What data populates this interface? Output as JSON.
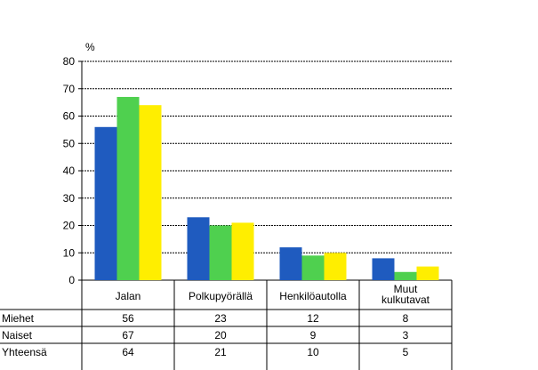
{
  "chart_data": {
    "type": "bar",
    "ylabel": "%",
    "ylim": [
      0,
      80
    ],
    "yticks": [
      0,
      10,
      20,
      30,
      40,
      50,
      60,
      70,
      80
    ],
    "grid": true,
    "categories": [
      "Jalan",
      "Polkupyörällä",
      "Henkilöautolla",
      "Muut kulkutavat"
    ],
    "category_lines": [
      [
        "Jalan"
      ],
      [
        "Polkupyörällä"
      ],
      [
        "Henkilöautolla"
      ],
      [
        "Muut",
        "kulkutavat"
      ]
    ],
    "series": [
      {
        "name": "Miehet",
        "values": [
          56,
          23,
          12,
          8
        ],
        "color": "#1f5bbf"
      },
      {
        "name": "Naiset",
        "values": [
          67,
          20,
          9,
          3
        ],
        "color": "#4fd04f"
      },
      {
        "name": "Yhteensä",
        "values": [
          64,
          21,
          10,
          5
        ],
        "color": "#ffee00"
      }
    ]
  }
}
